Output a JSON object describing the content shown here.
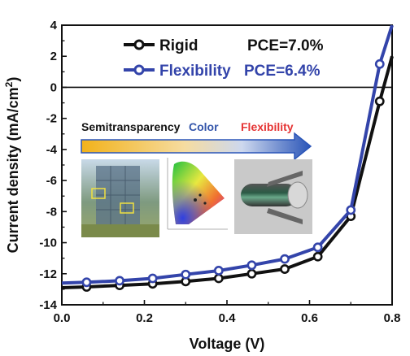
{
  "chart_data": {
    "type": "line",
    "xlabel": "Voltage (V)",
    "ylabel": "Current density (mA/cm",
    "ylabel_sup": "2",
    "ylabel_close": ")",
    "xlim": [
      0.0,
      0.8
    ],
    "ylim": [
      -14,
      4
    ],
    "xticks": [
      "0.0",
      "0.2",
      "0.4",
      "0.6",
      "0.8"
    ],
    "xtick_values": [
      0.0,
      0.2,
      0.4,
      0.6,
      0.8
    ],
    "yticks": [
      "-14",
      "-12",
      "-10",
      "-8",
      "-6",
      "-4",
      "-2",
      "0",
      "2",
      "4"
    ],
    "ytick_values": [
      -14,
      -12,
      -10,
      -8,
      -6,
      -4,
      -2,
      0,
      2,
      4
    ],
    "zero_line": true,
    "grid": false,
    "legend_position": "top-center",
    "series": [
      {
        "name": "Rigid",
        "pce": "PCE=7.0%",
        "color": "#111111",
        "x": [
          0.0,
          0.06,
          0.14,
          0.22,
          0.3,
          0.38,
          0.46,
          0.54,
          0.62,
          0.7,
          0.77,
          0.8
        ],
        "y": [
          -12.9,
          -12.85,
          -12.75,
          -12.65,
          -12.5,
          -12.3,
          -12.0,
          -11.7,
          -10.9,
          -8.3,
          -0.9,
          2.0
        ],
        "marker_x": [
          0.06,
          0.14,
          0.22,
          0.3,
          0.38,
          0.46,
          0.54,
          0.62,
          0.7,
          0.77
        ],
        "marker_y": [
          -12.85,
          -12.75,
          -12.65,
          -12.5,
          -12.3,
          -12.0,
          -11.7,
          -10.9,
          -8.3,
          -0.9
        ]
      },
      {
        "name": "Flexibility",
        "pce": "PCE=6.4%",
        "color": "#3344aa",
        "x": [
          0.0,
          0.06,
          0.14,
          0.22,
          0.3,
          0.38,
          0.46,
          0.54,
          0.62,
          0.7,
          0.77,
          0.8
        ],
        "y": [
          -12.6,
          -12.55,
          -12.45,
          -12.3,
          -12.05,
          -11.8,
          -11.45,
          -11.05,
          -10.3,
          -7.9,
          1.5,
          4.0
        ],
        "marker_x": [
          0.06,
          0.14,
          0.22,
          0.3,
          0.38,
          0.46,
          0.54,
          0.62,
          0.7,
          0.77
        ],
        "marker_y": [
          -12.55,
          -12.45,
          -12.3,
          -12.05,
          -11.8,
          -11.45,
          -11.05,
          -10.3,
          -7.9,
          1.5
        ]
      }
    ],
    "annotations": {
      "arrow_labels": [
        {
          "text": "Semitransparency",
          "color": "#111111"
        },
        {
          "text": "Color",
          "color": "#3355aa"
        },
        {
          "text": "Flexibility",
          "color": "#e53333"
        }
      ],
      "arrow_gradient": [
        "#f2b21a",
        "#2a55b8"
      ]
    }
  }
}
